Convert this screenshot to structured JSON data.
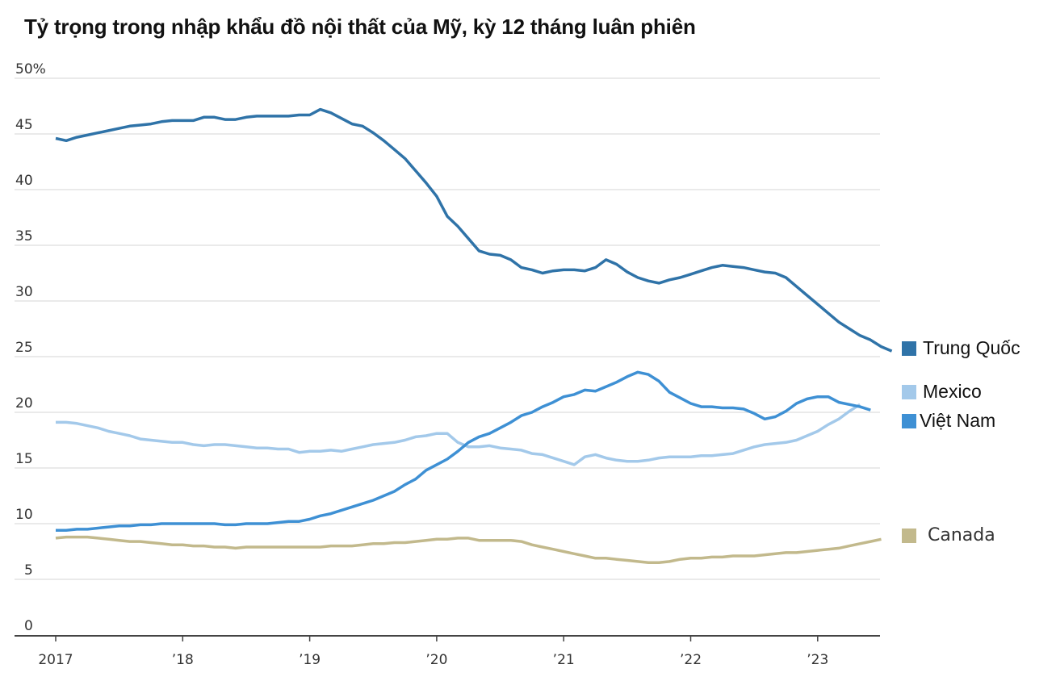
{
  "title": "Tỷ trọng trong nhập khẩu đồ nội thất của Mỹ, kỳ 12 tháng luân phiên",
  "chart_data": {
    "type": "line",
    "title": "Tỷ trọng trong nhập khẩu đồ nội thất của Mỹ, kỳ 12 tháng luân phiên",
    "xlabel": "",
    "ylabel": "",
    "ylim": [
      0,
      50
    ],
    "yticks": [
      0,
      5,
      10,
      15,
      20,
      25,
      30,
      35,
      40,
      45,
      50
    ],
    "ytick_labels": [
      "0",
      "5",
      "10",
      "15",
      "20",
      "25",
      "30",
      "35",
      "40",
      "45",
      "50%"
    ],
    "xticks": [
      "2017",
      "’18",
      "’19",
      "’20",
      "’21",
      "’22",
      "’23"
    ],
    "x_start": "2017-01",
    "x_frequency": "monthly",
    "grid": true,
    "legend_position": "right, next to line ends",
    "series": [
      {
        "name": "Trung Quốc",
        "color": "#2f73a8",
        "values": [
          44.6,
          44.4,
          44.7,
          44.9,
          45.1,
          45.3,
          45.5,
          45.7,
          45.8,
          45.9,
          46.1,
          46.2,
          46.2,
          46.2,
          46.5,
          46.5,
          46.3,
          46.3,
          46.5,
          46.6,
          46.6,
          46.6,
          46.6,
          46.7,
          46.7,
          47.2,
          46.9,
          46.4,
          45.9,
          45.7,
          45.1,
          44.4,
          43.6,
          42.8,
          41.7,
          40.6,
          39.4,
          37.6,
          36.7,
          35.6,
          34.5,
          34.2,
          34.1,
          33.7,
          33.0,
          32.8,
          32.5,
          32.7,
          32.8,
          32.8,
          32.7,
          33.0,
          33.7,
          33.3,
          32.6,
          32.1,
          31.8,
          31.6,
          31.9,
          32.1,
          32.4,
          32.7,
          33.0,
          33.2,
          33.1,
          33.0,
          32.8,
          32.6,
          32.5,
          32.1,
          31.3,
          30.5,
          29.7,
          28.9,
          28.1,
          27.5,
          26.9,
          26.5,
          25.9,
          25.5
        ]
      },
      {
        "name": "Mexico",
        "color": "#a3c9ea",
        "values": [
          19.1,
          19.1,
          19.0,
          18.8,
          18.6,
          18.3,
          18.1,
          17.9,
          17.6,
          17.5,
          17.4,
          17.3,
          17.3,
          17.1,
          17.0,
          17.1,
          17.1,
          17.0,
          16.9,
          16.8,
          16.8,
          16.7,
          16.7,
          16.4,
          16.5,
          16.5,
          16.6,
          16.5,
          16.7,
          16.9,
          17.1,
          17.2,
          17.3,
          17.5,
          17.8,
          17.9,
          18.1,
          18.1,
          17.3,
          16.9,
          16.9,
          17.0,
          16.8,
          16.7,
          16.6,
          16.3,
          16.2,
          15.9,
          15.6,
          15.3,
          16.0,
          16.2,
          15.9,
          15.7,
          15.6,
          15.6,
          15.7,
          15.9,
          16.0,
          16.0,
          16.0,
          16.1,
          16.1,
          16.2,
          16.3,
          16.6,
          16.9,
          17.1,
          17.2,
          17.3,
          17.5,
          17.9,
          18.3,
          18.9,
          19.4,
          20.1,
          20.7
        ]
      },
      {
        "name": "Việt Nam",
        "color": "#3e90d4",
        "values": [
          9.4,
          9.4,
          9.5,
          9.5,
          9.6,
          9.7,
          9.8,
          9.8,
          9.9,
          9.9,
          10.0,
          10.0,
          10.0,
          10.0,
          10.0,
          10.0,
          9.9,
          9.9,
          10.0,
          10.0,
          10.0,
          10.1,
          10.2,
          10.2,
          10.4,
          10.7,
          10.9,
          11.2,
          11.5,
          11.8,
          12.1,
          12.5,
          12.9,
          13.5,
          14.0,
          14.8,
          15.3,
          15.8,
          16.5,
          17.3,
          17.8,
          18.1,
          18.6,
          19.1,
          19.7,
          20.0,
          20.5,
          20.9,
          21.4,
          21.6,
          22.0,
          21.9,
          22.3,
          22.7,
          23.2,
          23.6,
          23.4,
          22.8,
          21.8,
          21.3,
          20.8,
          20.5,
          20.5,
          20.4,
          20.4,
          20.3,
          19.9,
          19.4,
          19.6,
          20.1,
          20.8,
          21.2,
          21.4,
          21.4,
          20.9,
          20.7,
          20.5,
          20.2
        ]
      },
      {
        "name": "Canada",
        "color": "#c2b98c",
        "values": [
          8.7,
          8.8,
          8.8,
          8.8,
          8.7,
          8.6,
          8.5,
          8.4,
          8.4,
          8.3,
          8.2,
          8.1,
          8.1,
          8.0,
          8.0,
          7.9,
          7.9,
          7.8,
          7.9,
          7.9,
          7.9,
          7.9,
          7.9,
          7.9,
          7.9,
          7.9,
          8.0,
          8.0,
          8.0,
          8.1,
          8.2,
          8.2,
          8.3,
          8.3,
          8.4,
          8.5,
          8.6,
          8.6,
          8.7,
          8.7,
          8.5,
          8.5,
          8.5,
          8.5,
          8.4,
          8.1,
          7.9,
          7.7,
          7.5,
          7.3,
          7.1,
          6.9,
          6.9,
          6.8,
          6.7,
          6.6,
          6.5,
          6.5,
          6.6,
          6.8,
          6.9,
          6.9,
          7.0,
          7.0,
          7.1,
          7.1,
          7.1,
          7.2,
          7.3,
          7.4,
          7.4,
          7.5,
          7.6,
          7.7,
          7.8,
          8.0,
          8.2,
          8.4,
          8.6
        ]
      }
    ]
  },
  "legend": [
    {
      "label": "Trung Quốc",
      "color": "#2f73a8"
    },
    {
      "label": "Mexico",
      "color": "#a3c9ea"
    },
    {
      "label": "Việt Nam",
      "color": "#3e90d4"
    },
    {
      "label": "Canada",
      "color": "#c2b98c"
    }
  ]
}
